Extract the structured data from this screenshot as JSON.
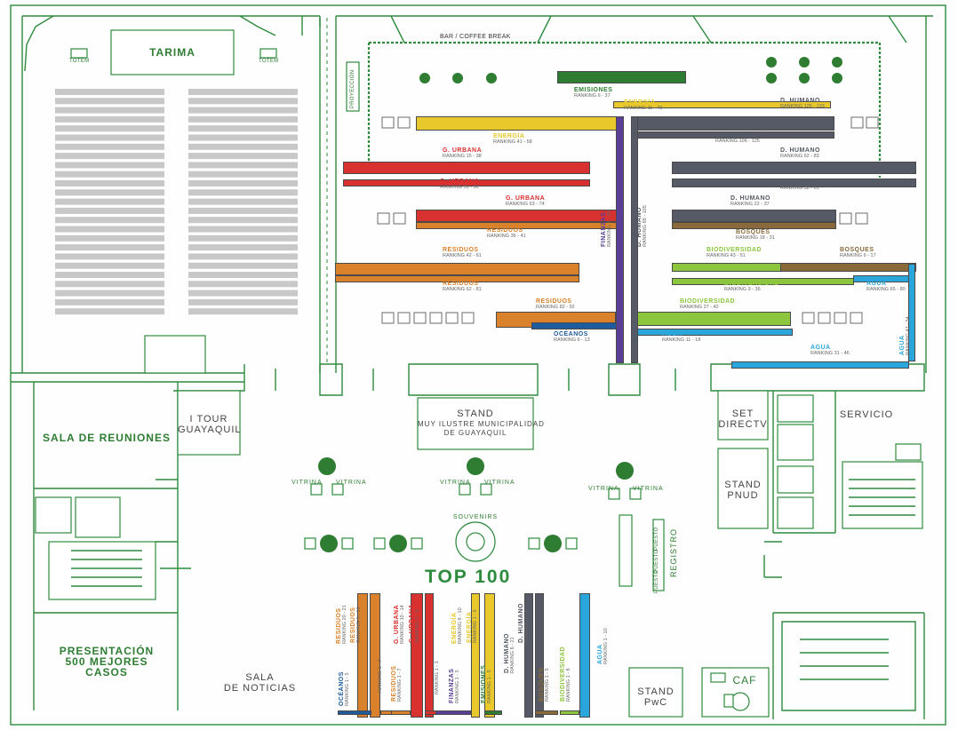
{
  "labels": {
    "tarima": "TARIMA",
    "totem": "TOTEM",
    "bar": "BAR / COFFEE BREAK",
    "proyeccion": "PROYECCIÓN",
    "sala_reuniones": "SALA DE REUNIONES",
    "i_tour": "I TOUR",
    "guayaquil": "GUAYAQUIL",
    "stand": "STAND",
    "municipalidad_1": "MUY ILUSTRE MUNICIPALIDAD",
    "municipalidad_2": "DE GUAYAQUIL",
    "set": "SET",
    "directv": "DIRECTV",
    "servicio": "SERVICIO",
    "pnud": "PNUD",
    "vitrina": "VITRINA",
    "souvenirs": "SOUVENIRS",
    "registro": "REGISTRO",
    "top100": "TOP 100",
    "presentacion_1": "PRESENTACIÓN",
    "presentacion_2": "500 MEJORES",
    "presentacion_3": "CASOS",
    "sala": "SALA",
    "noticias": "DE NOTICIAS",
    "pwc": "PwC",
    "caf": "CAF",
    "puesto": "PUESTO"
  },
  "colors": {
    "emisiones": "#2e7d32",
    "energia": "#e8c82a",
    "d_humano": "#555a66",
    "g_urbana": "#d93030",
    "residuos": "#d9822b",
    "finanzas": "#5b3f96",
    "bosques": "#8a6a3a",
    "biodiversidad": "#8cc63f",
    "agua": "#2aa6dc",
    "oceanos": "#1e5c9e"
  },
  "stands": [
    {
      "name": "EMISIONES",
      "rank": "RANKING 6 - 37",
      "color": "emisiones"
    },
    {
      "name": "ENERGÍA",
      "rank": "RANKING 11 - 40",
      "color": "energia"
    },
    {
      "name": "D. HUMANO",
      "rank": "RANKING 126 - 133",
      "color": "d_humano"
    },
    {
      "name": "ENERGÍA",
      "rank": "RANKING 41 - 58",
      "color": "energia"
    },
    {
      "name": "D. HUMANO",
      "rank": "RANKING 106 - 125",
      "color": "d_humano"
    },
    {
      "name": "G. URBANA",
      "rank": "RANKING 15 - 38",
      "color": "g_urbana"
    },
    {
      "name": "D. HUMANO",
      "rank": "RANKING 62 - 83",
      "color": "d_humano"
    },
    {
      "name": "G. URBANA",
      "rank": "RANKING 39 - 62",
      "color": "g_urbana"
    },
    {
      "name": "D. HUMANO",
      "rank": "RANKING 38 - 61",
      "color": "d_humano"
    },
    {
      "name": "G. URBANA",
      "rank": "RANKING 63 - 74",
      "color": "g_urbana"
    },
    {
      "name": "D. HUMANO",
      "rank": "RANKING 22 - 37",
      "color": "d_humano"
    },
    {
      "name": "RESIDUOS",
      "rank": "RANKING 36 - 41",
      "color": "residuos"
    },
    {
      "name": "BOSQUES",
      "rank": "RANKING 18 - 31",
      "color": "bosques"
    },
    {
      "name": "RESIDUOS",
      "rank": "RANKING 42 - 61",
      "color": "residuos"
    },
    {
      "name": "BIODIVERSIDAD",
      "rank": "RANKING 43 - 51",
      "color": "biodiversidad"
    },
    {
      "name": "BOSQUES",
      "rank": "RANKING 6 - 17",
      "color": "bosques"
    },
    {
      "name": "RESIDUOS",
      "rank": "RANKING 62 - 81",
      "color": "residuos"
    },
    {
      "name": "BIODIVERSIDAD",
      "rank": "RANKING 9 - 36",
      "color": "biodiversidad"
    },
    {
      "name": "AGUA",
      "rank": "RANKING 65 - 80",
      "color": "agua"
    },
    {
      "name": "RESIDUOS",
      "rank": "RANKING 82 - 92",
      "color": "residuos"
    },
    {
      "name": "BIODIVERSIDAD",
      "rank": "RANKING 27 - 42",
      "color": "biodiversidad"
    },
    {
      "name": "OCÉANOS",
      "rank": "RANKING 6 - 13",
      "color": "oceanos"
    },
    {
      "name": "AGUA",
      "rank": "RANKING 11 - 18",
      "color": "agua"
    },
    {
      "name": "AGUA",
      "rank": "RANKING 31 - 46",
      "color": "agua"
    },
    {
      "name": "AGUA",
      "rank": "RANKING 47 - 54",
      "color": "agua"
    },
    {
      "name": "FINANZAS",
      "rank": "RANKING 6 - 35",
      "color": "finanzas"
    },
    {
      "name": "D. HUMANO",
      "rank": "RANKING 85 - 105",
      "color": "d_humano"
    }
  ],
  "top100": [
    {
      "name": "RESIDUOS",
      "rank": "RANKING 20 - 21",
      "color": "residuos"
    },
    {
      "name": "RESIDUOS",
      "rank": "RANKING 8 - 19",
      "color": "residuos"
    },
    {
      "name": "G. URBANA",
      "rank": "RANKING 10 - 14",
      "color": "g_urbana"
    },
    {
      "name": "G. URBANA",
      "rank": "RANKING 1 - 9",
      "color": "g_urbana"
    },
    {
      "name": "ENERGÍA",
      "rank": "RANKING 6 - 10",
      "color": "energia"
    },
    {
      "name": "ENERGÍA",
      "rank": "RANKING 1 - 5",
      "color": "energia"
    },
    {
      "name": "D. HUMANO",
      "rank": "RANKING 6 - 21",
      "color": "d_humano"
    },
    {
      "name": "D. HUMANO",
      "rank": "RANKING 1 - 5",
      "color": "d_humano"
    },
    {
      "name": "AGUA",
      "rank": "RANKING 1 - 10",
      "color": "agua"
    },
    {
      "name": "OCÉANOS",
      "rank": "RANKING 1 - 5",
      "color": "oceanos"
    },
    {
      "name": "RESIDUOS",
      "rank": "RANKING 1 - 7",
      "color": "residuos"
    },
    {
      "name": "RESIDUOS",
      "rank": "RANKING 1 - 7",
      "color": "residuos"
    },
    {
      "name": "G. URBANA",
      "rank": "RANKING 1 - 3",
      "color": "g_urbana"
    },
    {
      "name": "FINANZAS",
      "rank": "RANKING 1 - 5",
      "color": "finanzas"
    },
    {
      "name": "EMISIONES",
      "rank": "RANKING 1 - 5",
      "color": "emisiones"
    },
    {
      "name": "BOSQUES",
      "rank": "RANKING 1 - 5",
      "color": "bosques"
    },
    {
      "name": "BIODIVERSIDAD",
      "rank": "RANKING 1 - 8",
      "color": "biodiversidad"
    }
  ]
}
